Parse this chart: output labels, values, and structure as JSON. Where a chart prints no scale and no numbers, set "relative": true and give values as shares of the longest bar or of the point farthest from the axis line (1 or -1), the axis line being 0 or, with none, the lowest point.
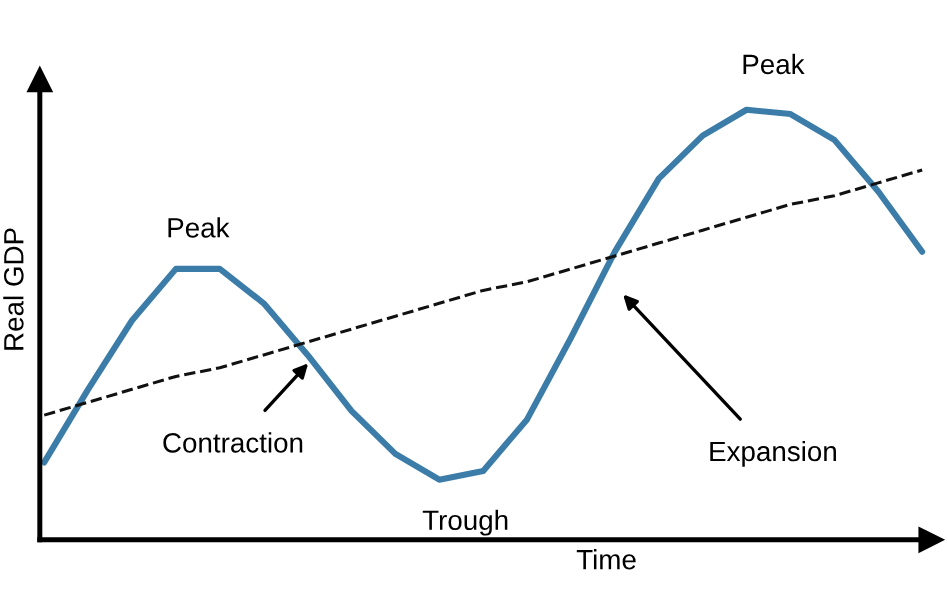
{
  "chart_data": {
    "type": "line",
    "relative": true,
    "xlabel": "Time",
    "ylabel": "Real GDP",
    "legend": false,
    "marker": "none",
    "categories": [
      null,
      null,
      null,
      null,
      null,
      null,
      null,
      null,
      null,
      null,
      null,
      null,
      null,
      null,
      null,
      null,
      null,
      null,
      null,
      null,
      null
    ],
    "series": [
      {
        "color": "#3b7ca8",
        "line_style": "solid",
        "values": [
          0.18,
          0.35,
          0.51,
          0.63,
          0.63,
          0.55,
          0.43,
          0.3,
          0.2,
          0.14,
          0.16,
          0.28,
          0.47,
          0.67,
          0.84,
          0.94,
          1.0,
          0.99,
          0.93,
          0.81,
          0.67
        ]
      },
      {
        "color": "#111111",
        "line_style": "dashed",
        "values": [
          0.29,
          0.32,
          0.35,
          0.38,
          0.4,
          0.43,
          0.46,
          0.49,
          0.52,
          0.55,
          0.58,
          0.6,
          0.63,
          0.66,
          0.69,
          0.72,
          0.75,
          0.78,
          0.8,
          0.83,
          0.86
        ]
      }
    ],
    "annotations": [
      "Peak",
      "Peak",
      "Contraction",
      "Trough",
      "Expansion"
    ]
  }
}
